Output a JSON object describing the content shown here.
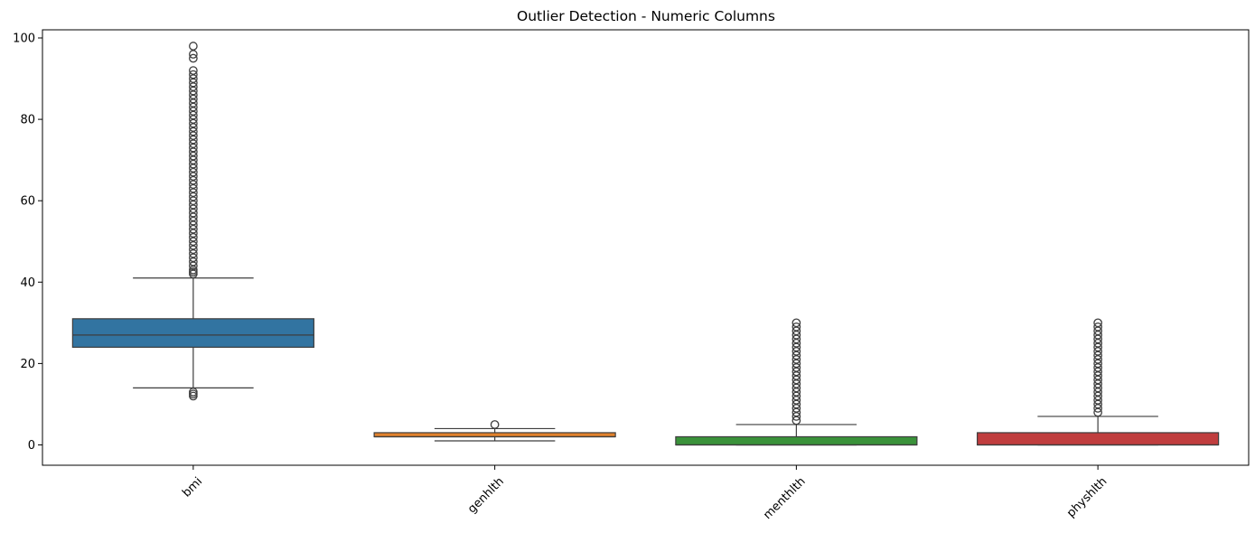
{
  "chart_data": {
    "type": "box",
    "title": "Outlier Detection - Numeric Columns",
    "xlabel": "",
    "ylabel": "",
    "ylim": [
      -5,
      102
    ],
    "yticks": [
      0,
      20,
      40,
      60,
      80,
      100
    ],
    "grid": false,
    "legend": "none",
    "categories": [
      "bmi",
      "genhlth",
      "menthlth",
      "physhlth"
    ],
    "boxes": [
      {
        "category": "bmi",
        "color": "#3274a1",
        "whisker_low": 14,
        "q1": 24,
        "median": 27,
        "q3": 31,
        "whisker_high": 41,
        "outliers": [
          12,
          12.5,
          13,
          42,
          42.5,
          43,
          44,
          45,
          46,
          47,
          48,
          49,
          50,
          51,
          52,
          53,
          54,
          55,
          56,
          57,
          58,
          59,
          60,
          61,
          62,
          63,
          64,
          65,
          66,
          67,
          68,
          69,
          70,
          71,
          72,
          73,
          74,
          75,
          76,
          77,
          78,
          79,
          80,
          81,
          82,
          83,
          84,
          85,
          86,
          87,
          88,
          89,
          90,
          91,
          92,
          95,
          96,
          98
        ]
      },
      {
        "category": "genhlth",
        "color": "#e1812c",
        "whisker_low": 1,
        "q1": 2,
        "median": 2,
        "q3": 3,
        "whisker_high": 4,
        "outliers": [
          5
        ]
      },
      {
        "category": "menthlth",
        "color": "#3a923a",
        "whisker_low": 0,
        "q1": 0,
        "median": 0,
        "q3": 2,
        "whisker_high": 5,
        "outliers": [
          6,
          7,
          8,
          9,
          10,
          11,
          12,
          13,
          14,
          15,
          16,
          17,
          18,
          19,
          20,
          21,
          22,
          23,
          24,
          25,
          26,
          27,
          28,
          29,
          30
        ]
      },
      {
        "category": "physhlth",
        "color": "#c03d3e",
        "whisker_low": 0,
        "q1": 0,
        "median": 0,
        "q3": 3,
        "whisker_high": 7,
        "outliers": [
          8,
          9,
          10,
          11,
          12,
          13,
          14,
          15,
          16,
          17,
          18,
          19,
          20,
          21,
          22,
          23,
          24,
          25,
          26,
          27,
          28,
          29,
          30
        ]
      }
    ]
  }
}
